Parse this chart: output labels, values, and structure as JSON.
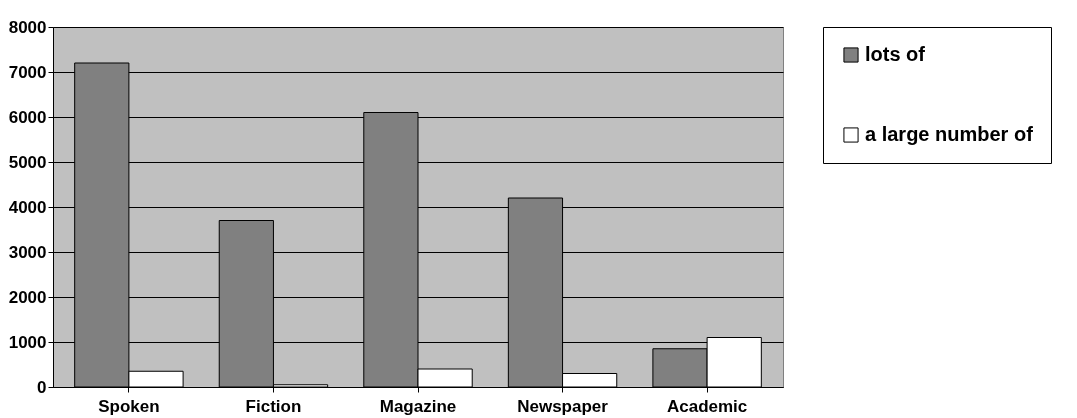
{
  "chart_data": {
    "type": "bar",
    "categories": [
      "Spoken",
      "Fiction",
      "Magazine",
      "Newspaper",
      "Academic"
    ],
    "series": [
      {
        "name": "lots of",
        "color": "#808080",
        "values": [
          7200,
          3700,
          6100,
          4200,
          850
        ]
      },
      {
        "name": "a large number of",
        "color": "#ffffff",
        "values": [
          350,
          50,
          400,
          300,
          1100
        ]
      }
    ],
    "ylim": [
      0,
      8000
    ],
    "yticks": [
      0,
      1000,
      2000,
      3000,
      4000,
      5000,
      6000,
      7000,
      8000
    ],
    "grid": "y",
    "legend": "right"
  }
}
